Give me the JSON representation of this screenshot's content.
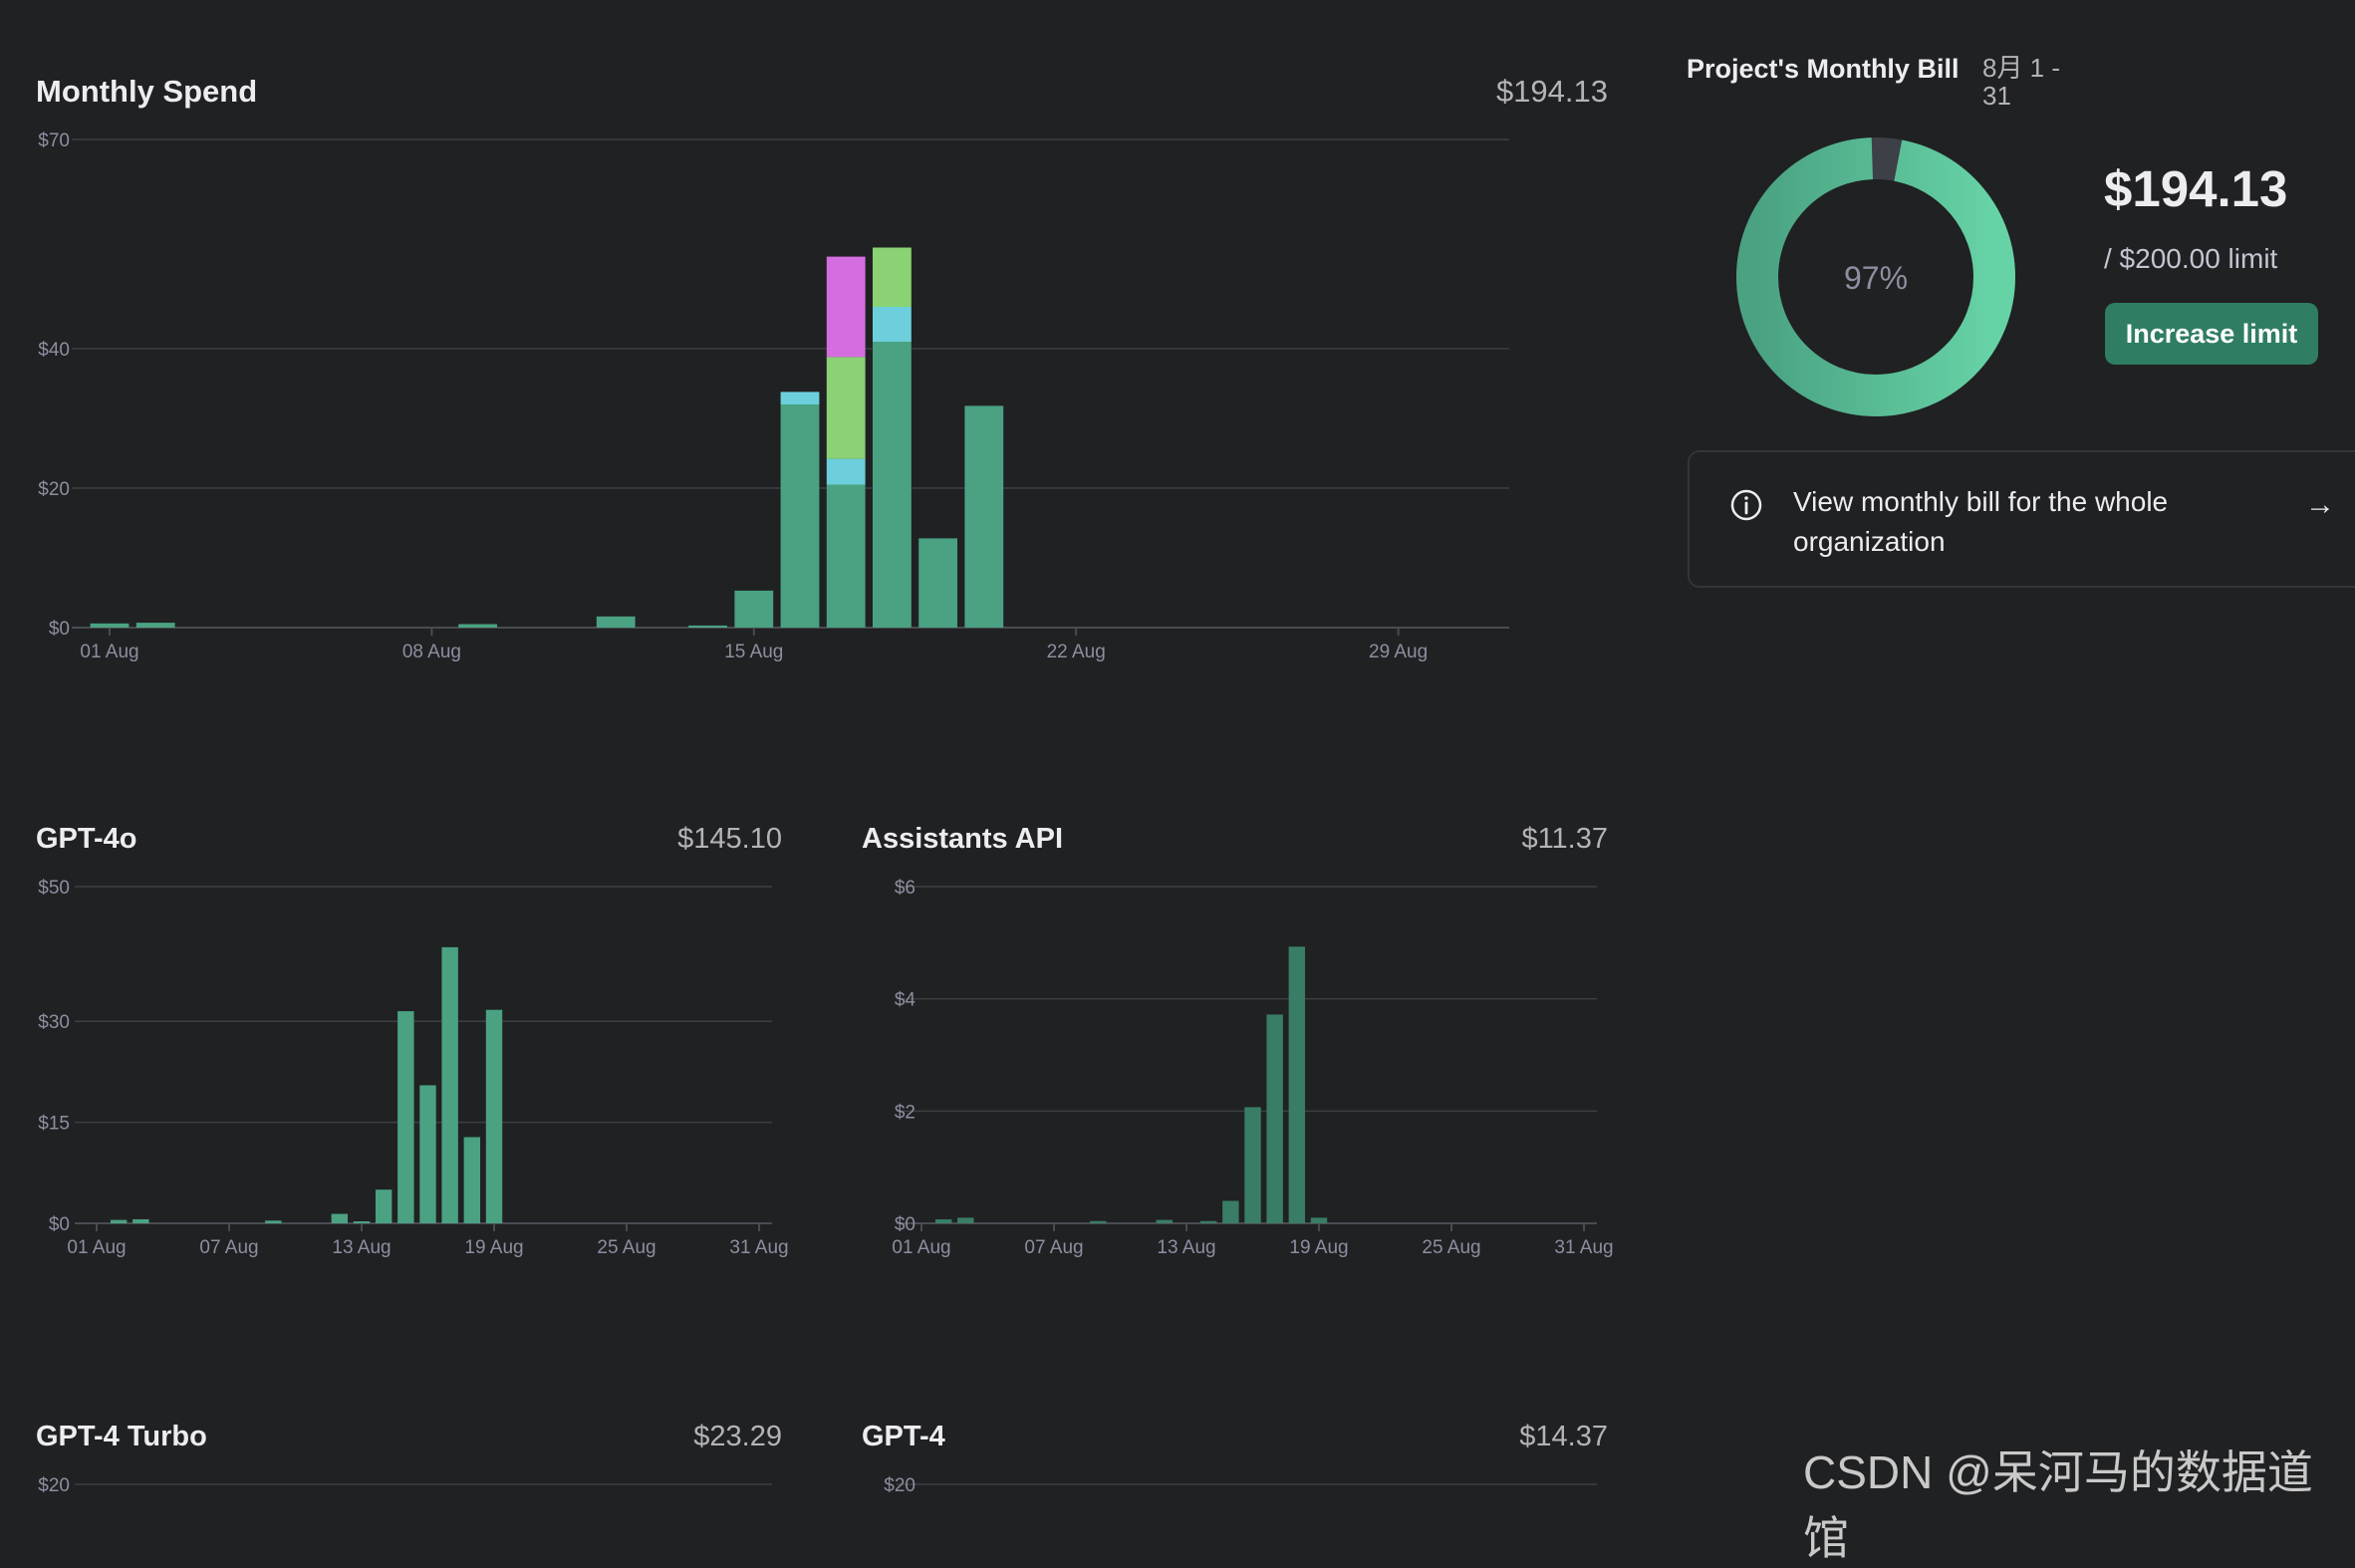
{
  "colors": {
    "background": "#202123",
    "bar_green": "#4aa282",
    "bar_dark_green": "#3a7d66",
    "light_green": "#8ad273",
    "cyan": "#6dcfdc",
    "magenta": "#d46ee0",
    "button": "#2f7d63"
  },
  "bill": {
    "title": "Project's Monthly Bill",
    "period": "8月 1 - 31",
    "amount": "$194.13",
    "limit": "/ $200.00 limit",
    "percent_label": "97%",
    "percent": 0.97,
    "button_label": "Increase limit",
    "org_link": "View monthly bill for the whole organization",
    "info_icon": "info-circle-icon",
    "arrow_icon": "arrow-right-icon"
  },
  "panels": {
    "monthly": {
      "title": "Monthly Spend",
      "total": "$194.13"
    },
    "gpt4o": {
      "title": "GPT-4o",
      "total": "$145.10"
    },
    "assistants": {
      "title": "Assistants API",
      "total": "$11.37"
    },
    "gpt4turbo": {
      "title": "GPT-4 Turbo",
      "total": "$23.29"
    },
    "gpt4": {
      "title": "GPT-4",
      "total": "$14.37"
    }
  },
  "watermark": "CSDN @呆河马的数据道馆",
  "chart_data": [
    {
      "id": "monthly",
      "type": "bar",
      "title": "Monthly Spend",
      "y_ticks": [
        "$70",
        "$40",
        "$20",
        "$0"
      ],
      "y_tick_values": [
        70,
        40,
        20,
        0
      ],
      "ylim": [
        0,
        70
      ],
      "x_labels": [
        "01 Aug",
        "08 Aug",
        "15 Aug",
        "22 Aug",
        "29 Aug"
      ],
      "x_label_days": [
        1,
        8,
        15,
        22,
        29
      ],
      "days": 31,
      "series_colors": [
        "#4aa282",
        "#6dcfdc",
        "#8ad273",
        "#d46ee0"
      ],
      "bars": [
        {
          "day": 1,
          "segments": [
            0.6
          ]
        },
        {
          "day": 2,
          "segments": [
            0.7
          ]
        },
        {
          "day": 9,
          "segments": [
            0.5
          ]
        },
        {
          "day": 12,
          "segments": [
            1.6
          ]
        },
        {
          "day": 14,
          "segments": [
            0.3
          ]
        },
        {
          "day": 15,
          "segments": [
            5.3
          ]
        },
        {
          "day": 16,
          "segments": [
            32,
            1.8
          ]
        },
        {
          "day": 17,
          "segments": [
            20.5,
            3.7,
            14.6,
            14.4
          ]
        },
        {
          "day": 18,
          "segments": [
            41,
            5,
            8.5
          ]
        },
        {
          "day": 19,
          "segments": [
            12.8
          ]
        },
        {
          "day": 20,
          "segments": [
            31.8
          ]
        }
      ],
      "grid": true
    },
    {
      "id": "gpt4o",
      "type": "bar",
      "title": "GPT-4o",
      "y_ticks": [
        "$50",
        "$30",
        "$15",
        "$0"
      ],
      "y_tick_values": [
        50,
        30,
        15,
        0
      ],
      "ylim": [
        0,
        50
      ],
      "x_labels": [
        "01 Aug",
        "07 Aug",
        "13 Aug",
        "19 Aug",
        "25 Aug",
        "31 Aug"
      ],
      "x_label_days": [
        1,
        7,
        13,
        19,
        25,
        31
      ],
      "days": 31,
      "series_colors": [
        "#4aa282"
      ],
      "bars": [
        {
          "day": 2,
          "segments": [
            0.5
          ]
        },
        {
          "day": 3,
          "segments": [
            0.6
          ]
        },
        {
          "day": 9,
          "segments": [
            0.4
          ]
        },
        {
          "day": 12,
          "segments": [
            1.4
          ]
        },
        {
          "day": 13,
          "segments": [
            0.2
          ]
        },
        {
          "day": 14,
          "segments": [
            5
          ]
        },
        {
          "day": 15,
          "segments": [
            31.5
          ]
        },
        {
          "day": 16,
          "segments": [
            20.5
          ]
        },
        {
          "day": 17,
          "segments": [
            41
          ]
        },
        {
          "day": 18,
          "segments": [
            12.8
          ]
        },
        {
          "day": 19,
          "segments": [
            31.7
          ]
        }
      ],
      "grid": true
    },
    {
      "id": "assistants",
      "type": "bar",
      "title": "Assistants API",
      "y_ticks": [
        "$6",
        "$4",
        "$2",
        "$0"
      ],
      "y_tick_values": [
        6,
        4,
        2,
        0
      ],
      "ylim": [
        0,
        6
      ],
      "x_labels": [
        "01 Aug",
        "07 Aug",
        "13 Aug",
        "19 Aug",
        "25 Aug",
        "31 Aug"
      ],
      "x_label_days": [
        1,
        7,
        13,
        19,
        25,
        31
      ],
      "days": 31,
      "series_colors": [
        "#3a7d66"
      ],
      "bars": [
        {
          "day": 2,
          "segments": [
            0.07
          ]
        },
        {
          "day": 3,
          "segments": [
            0.1
          ]
        },
        {
          "day": 9,
          "segments": [
            0.04
          ]
        },
        {
          "day": 12,
          "segments": [
            0.06
          ]
        },
        {
          "day": 14,
          "segments": [
            0.04
          ]
        },
        {
          "day": 15,
          "segments": [
            0.4
          ]
        },
        {
          "day": 16,
          "segments": [
            2.07
          ]
        },
        {
          "day": 17,
          "segments": [
            3.72
          ]
        },
        {
          "day": 18,
          "segments": [
            4.93
          ]
        },
        {
          "day": 19,
          "segments": [
            0.1
          ]
        }
      ],
      "grid": true
    },
    {
      "id": "gpt4turbo",
      "type": "bar",
      "title": "GPT-4 Turbo",
      "y_ticks": [
        "$20"
      ],
      "y_tick_values": [
        20
      ],
      "ylim": [
        0,
        20
      ],
      "bars": [],
      "grid": true
    },
    {
      "id": "gpt4",
      "type": "bar",
      "title": "GPT-4",
      "y_ticks": [
        "$20"
      ],
      "y_tick_values": [
        20
      ],
      "ylim": [
        0,
        20
      ],
      "bars": [],
      "grid": true
    }
  ]
}
